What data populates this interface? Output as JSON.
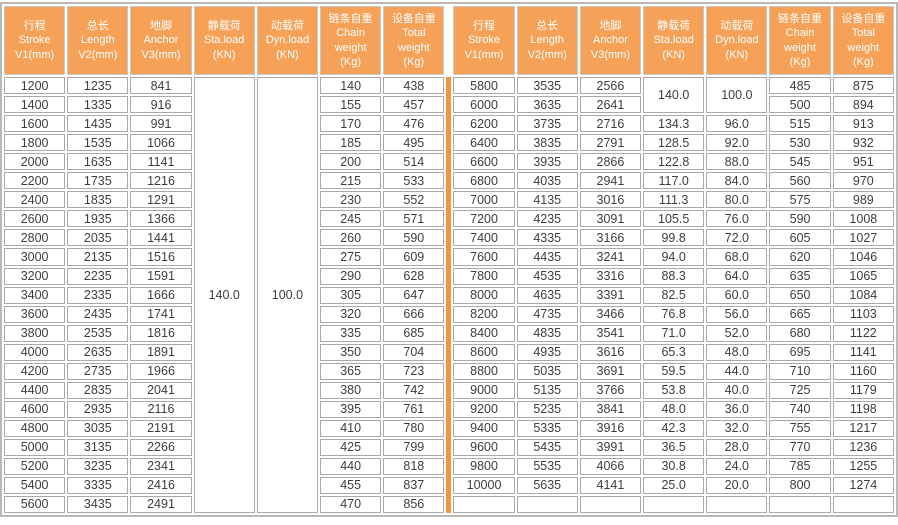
{
  "colors": {
    "header_bg": "#F5A158",
    "divider_orange": "#F2953F",
    "cell_border": "#A9A9A9",
    "outer_border": "#B9B9B9",
    "body_text": "#3D3D3D",
    "header_text": "#FFFFFF"
  },
  "columns": [
    {
      "id": "stroke",
      "lines": [
        "行程",
        "Stroke",
        "V1(mm)"
      ]
    },
    {
      "id": "length",
      "lines": [
        "总长",
        "Length",
        "V2(mm)"
      ]
    },
    {
      "id": "anchor",
      "lines": [
        "地脚",
        "Anchor",
        "V3(mm)"
      ]
    },
    {
      "id": "sta",
      "lines": [
        "静载荷",
        "Sta.load",
        "(KN)"
      ]
    },
    {
      "id": "dyn",
      "lines": [
        "动载荷",
        "Dyn.load",
        "(KN)"
      ]
    },
    {
      "id": "chain",
      "lines": [
        "链条自重",
        "Chain",
        "weight",
        "(Kg)"
      ]
    },
    {
      "id": "total",
      "lines": [
        "设备自重",
        "Total",
        "weight",
        "(Kg)"
      ]
    }
  ],
  "left": {
    "merged_sta": "140.0",
    "merged_dyn": "100.0",
    "rows": [
      {
        "stroke": "1200",
        "length": "1235",
        "anchor": "841",
        "chain": "140",
        "total": "438"
      },
      {
        "stroke": "1400",
        "length": "1335",
        "anchor": "916",
        "chain": "155",
        "total": "457"
      },
      {
        "stroke": "1600",
        "length": "1435",
        "anchor": "991",
        "chain": "170",
        "total": "476"
      },
      {
        "stroke": "1800",
        "length": "1535",
        "anchor": "1066",
        "chain": "185",
        "total": "495"
      },
      {
        "stroke": "2000",
        "length": "1635",
        "anchor": "1141",
        "chain": "200",
        "total": "514"
      },
      {
        "stroke": "2200",
        "length": "1735",
        "anchor": "1216",
        "chain": "215",
        "total": "533"
      },
      {
        "stroke": "2400",
        "length": "1835",
        "anchor": "1291",
        "chain": "230",
        "total": "552"
      },
      {
        "stroke": "2600",
        "length": "1935",
        "anchor": "1366",
        "chain": "245",
        "total": "571"
      },
      {
        "stroke": "2800",
        "length": "2035",
        "anchor": "1441",
        "chain": "260",
        "total": "590"
      },
      {
        "stroke": "3000",
        "length": "2135",
        "anchor": "1516",
        "chain": "275",
        "total": "609"
      },
      {
        "stroke": "3200",
        "length": "2235",
        "anchor": "1591",
        "chain": "290",
        "total": "628"
      },
      {
        "stroke": "3400",
        "length": "2335",
        "anchor": "1666",
        "chain": "305",
        "total": "647"
      },
      {
        "stroke": "3600",
        "length": "2435",
        "anchor": "1741",
        "chain": "320",
        "total": "666"
      },
      {
        "stroke": "3800",
        "length": "2535",
        "anchor": "1816",
        "chain": "335",
        "total": "685"
      },
      {
        "stroke": "4000",
        "length": "2635",
        "anchor": "1891",
        "chain": "350",
        "total": "704"
      },
      {
        "stroke": "4200",
        "length": "2735",
        "anchor": "1966",
        "chain": "365",
        "total": "723"
      },
      {
        "stroke": "4400",
        "length": "2835",
        "anchor": "2041",
        "chain": "380",
        "total": "742"
      },
      {
        "stroke": "4600",
        "length": "2935",
        "anchor": "2116",
        "chain": "395",
        "total": "761"
      },
      {
        "stroke": "4800",
        "length": "3035",
        "anchor": "2191",
        "chain": "410",
        "total": "780"
      },
      {
        "stroke": "5000",
        "length": "3135",
        "anchor": "2266",
        "chain": "425",
        "total": "799"
      },
      {
        "stroke": "5200",
        "length": "3235",
        "anchor": "2341",
        "chain": "440",
        "total": "818"
      },
      {
        "stroke": "5400",
        "length": "3335",
        "anchor": "2416",
        "chain": "455",
        "total": "837"
      },
      {
        "stroke": "5600",
        "length": "3435",
        "anchor": "2491",
        "chain": "470",
        "total": "856"
      }
    ]
  },
  "right": {
    "merged_sta": "140.0",
    "merged_dyn": "100.0",
    "merged_span": 2,
    "rows": [
      {
        "stroke": "5800",
        "length": "3535",
        "anchor": "2566",
        "sta": null,
        "dyn": null,
        "chain": "485",
        "total": "875"
      },
      {
        "stroke": "6000",
        "length": "3635",
        "anchor": "2641",
        "sta": null,
        "dyn": null,
        "chain": "500",
        "total": "894"
      },
      {
        "stroke": "6200",
        "length": "3735",
        "anchor": "2716",
        "sta": "134.3",
        "dyn": "96.0",
        "chain": "515",
        "total": "913"
      },
      {
        "stroke": "6400",
        "length": "3835",
        "anchor": "2791",
        "sta": "128.5",
        "dyn": "92.0",
        "chain": "530",
        "total": "932"
      },
      {
        "stroke": "6600",
        "length": "3935",
        "anchor": "2866",
        "sta": "122.8",
        "dyn": "88.0",
        "chain": "545",
        "total": "951"
      },
      {
        "stroke": "6800",
        "length": "4035",
        "anchor": "2941",
        "sta": "117.0",
        "dyn": "84.0",
        "chain": "560",
        "total": "970"
      },
      {
        "stroke": "7000",
        "length": "4135",
        "anchor": "3016",
        "sta": "111.3",
        "dyn": "80.0",
        "chain": "575",
        "total": "989"
      },
      {
        "stroke": "7200",
        "length": "4235",
        "anchor": "3091",
        "sta": "105.5",
        "dyn": "76.0",
        "chain": "590",
        "total": "1008"
      },
      {
        "stroke": "7400",
        "length": "4335",
        "anchor": "3166",
        "sta": "99.8",
        "dyn": "72.0",
        "chain": "605",
        "total": "1027"
      },
      {
        "stroke": "7600",
        "length": "4435",
        "anchor": "3241",
        "sta": "94.0",
        "dyn": "68.0",
        "chain": "620",
        "total": "1046"
      },
      {
        "stroke": "7800",
        "length": "4535",
        "anchor": "3316",
        "sta": "88.3",
        "dyn": "64.0",
        "chain": "635",
        "total": "1065"
      },
      {
        "stroke": "8000",
        "length": "4635",
        "anchor": "3391",
        "sta": "82.5",
        "dyn": "60.0",
        "chain": "650",
        "total": "1084"
      },
      {
        "stroke": "8200",
        "length": "4735",
        "anchor": "3466",
        "sta": "76.8",
        "dyn": "56.0",
        "chain": "665",
        "total": "1103"
      },
      {
        "stroke": "8400",
        "length": "4835",
        "anchor": "3541",
        "sta": "71.0",
        "dyn": "52.0",
        "chain": "680",
        "total": "1122"
      },
      {
        "stroke": "8600",
        "length": "4935",
        "anchor": "3616",
        "sta": "65.3",
        "dyn": "48.0",
        "chain": "695",
        "total": "1141"
      },
      {
        "stroke": "8800",
        "length": "5035",
        "anchor": "3691",
        "sta": "59.5",
        "dyn": "44.0",
        "chain": "710",
        "total": "1160"
      },
      {
        "stroke": "9000",
        "length": "5135",
        "anchor": "3766",
        "sta": "53.8",
        "dyn": "40.0",
        "chain": "725",
        "total": "1179"
      },
      {
        "stroke": "9200",
        "length": "5235",
        "anchor": "3841",
        "sta": "48.0",
        "dyn": "36.0",
        "chain": "740",
        "total": "1198"
      },
      {
        "stroke": "9400",
        "length": "5335",
        "anchor": "3916",
        "sta": "42.3",
        "dyn": "32.0",
        "chain": "755",
        "total": "1217"
      },
      {
        "stroke": "9600",
        "length": "5435",
        "anchor": "3991",
        "sta": "36.5",
        "dyn": "28.0",
        "chain": "770",
        "total": "1236"
      },
      {
        "stroke": "9800",
        "length": "5535",
        "anchor": "4066",
        "sta": "30.8",
        "dyn": "24.0",
        "chain": "785",
        "total": "1255"
      },
      {
        "stroke": "10000",
        "length": "5635",
        "anchor": "4141",
        "sta": "25.0",
        "dyn": "20.0",
        "chain": "800",
        "total": "1274"
      },
      {
        "stroke": "",
        "length": "",
        "anchor": "",
        "sta": "",
        "dyn": "",
        "chain": "",
        "total": ""
      }
    ]
  }
}
